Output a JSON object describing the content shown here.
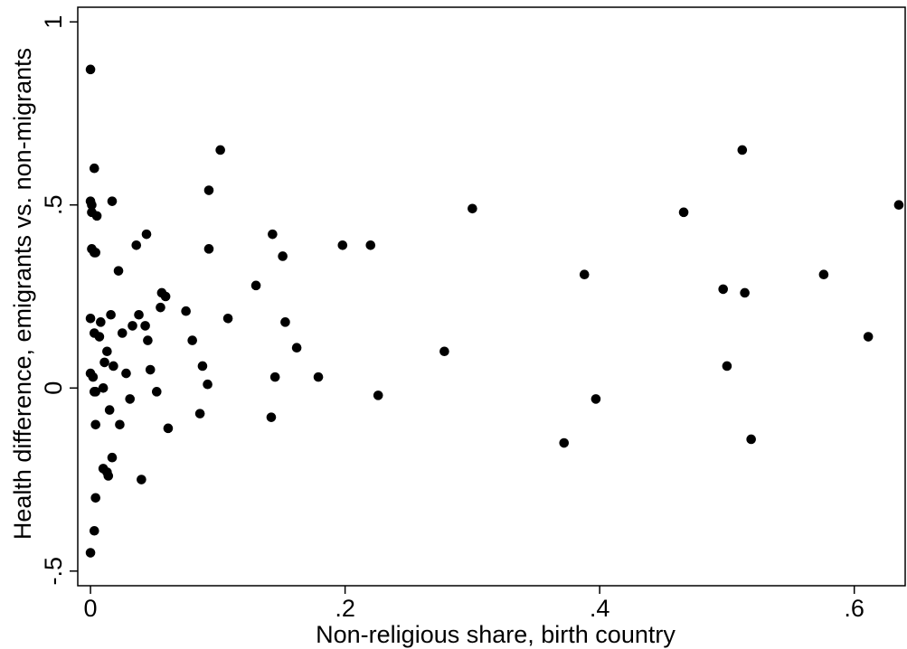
{
  "chart_data": {
    "type": "scatter",
    "title": "",
    "xlabel": "Non-religious share, birth country",
    "ylabel": "Health difference, emigrants vs. non-migrants",
    "xlim": [
      -0.01,
      0.64
    ],
    "ylim": [
      -0.54,
      1.04
    ],
    "x_ticks": [
      0,
      0.2,
      0.4,
      0.6
    ],
    "x_tick_labels": [
      "0",
      ".2",
      ".4",
      ".6"
    ],
    "y_ticks": [
      -0.5,
      0,
      0.5,
      1
    ],
    "y_tick_labels": [
      "-.5",
      "0",
      ".5",
      "1"
    ],
    "grid": false,
    "legend": "none",
    "marker_color": "#000000",
    "series": [
      {
        "x": [
          0.0,
          0.003,
          0.0,
          0.001,
          0.001,
          0.005,
          0.017,
          0.044,
          0.093,
          0.102,
          0.022,
          0.001,
          0.003,
          0.004,
          0.036,
          0.0,
          0.008,
          0.016,
          0.007,
          0.003,
          0.013,
          0.011,
          0.025,
          0.038,
          0.033,
          0.043,
          0.045,
          0.018,
          0.0,
          0.002,
          0.003,
          0.01,
          0.028,
          0.047,
          0.004,
          0.015,
          0.004,
          0.031,
          0.052,
          0.013,
          0.023,
          0.01,
          0.017,
          0.014,
          0.04,
          0.004,
          0.003,
          0.0,
          0.056,
          0.059,
          0.055,
          0.075,
          0.08,
          0.093,
          0.108,
          0.13,
          0.143,
          0.151,
          0.153,
          0.162,
          0.179,
          0.198,
          0.22,
          0.088,
          0.092,
          0.086,
          0.145,
          0.142,
          0.226,
          0.061,
          0.278,
          0.3,
          0.372,
          0.388,
          0.397,
          0.466,
          0.497,
          0.5,
          0.512,
          0.514,
          0.519,
          0.576,
          0.611,
          0.635
        ],
        "y": [
          0.87,
          0.6,
          0.51,
          0.5,
          0.48,
          0.47,
          0.51,
          0.42,
          0.54,
          0.65,
          0.32,
          0.38,
          0.37,
          0.37,
          0.39,
          0.19,
          0.18,
          0.2,
          0.14,
          0.15,
          0.1,
          0.07,
          0.15,
          0.2,
          0.17,
          0.17,
          0.13,
          0.06,
          0.04,
          0.03,
          -0.01,
          0.0,
          0.04,
          0.05,
          -0.01,
          -0.06,
          -0.1,
          -0.03,
          -0.01,
          -0.23,
          -0.1,
          -0.22,
          -0.19,
          -0.24,
          -0.25,
          -0.3,
          -0.39,
          -0.45,
          0.26,
          0.25,
          0.22,
          0.21,
          0.13,
          0.38,
          0.19,
          0.28,
          0.42,
          0.36,
          0.18,
          0.11,
          0.03,
          0.39,
          0.39,
          0.06,
          0.01,
          -0.07,
          0.03,
          -0.08,
          -0.02,
          -0.11,
          0.1,
          0.49,
          -0.15,
          0.31,
          -0.03,
          0.48,
          0.27,
          0.06,
          0.65,
          0.26,
          -0.14,
          0.31,
          0.14,
          0.5
        ]
      }
    ]
  }
}
